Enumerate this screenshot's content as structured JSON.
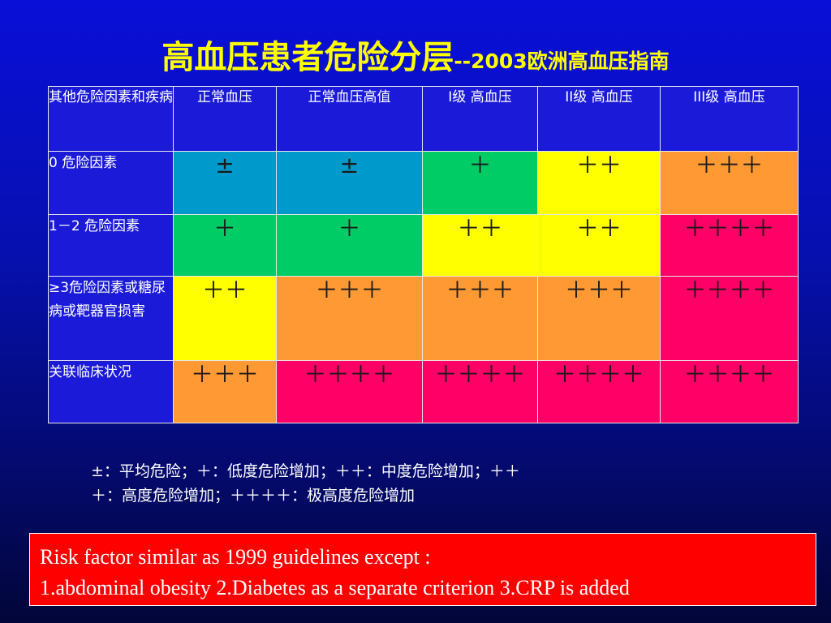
{
  "title": {
    "main": "高血压患者危险分层",
    "sub": "--2003欧洲高血压指南"
  },
  "table": {
    "headers": [
      "其他危险因素和疾病",
      "正常血压",
      "正常血压高值",
      "I级 高血压",
      "II级 高血压",
      "III级 高血压"
    ],
    "rows": [
      {
        "label": "0 危险因素",
        "cells": [
          "±",
          "±",
          "＋",
          "＋＋",
          "＋＋＋"
        ]
      },
      {
        "label": "1－2 危险因素",
        "cells": [
          "＋",
          "＋",
          "＋＋",
          "＋＋",
          "＋＋＋＋"
        ]
      },
      {
        "label": "≥3危险因素或糖尿病或靶器官损害",
        "cells": [
          "＋＋",
          "＋＋＋",
          "＋＋＋",
          "＋＋＋",
          "＋＋＋＋"
        ]
      },
      {
        "label": "关联临床状况",
        "cells": [
          "＋＋＋",
          "＋＋＋＋",
          "＋＋＋＋",
          "＋＋＋＋",
          "＋＋＋＋"
        ]
      }
    ]
  },
  "level_colors": {
    "average": "#0099cc",
    "low": "#00cc66",
    "moderate": "#ffff00",
    "high": "#ff9933",
    "very_high": "#ff0066"
  },
  "legend": {
    "line1": "±：平均危险；＋：低度危险增加；＋＋：中度危险增加；＋＋",
    "line2": "＋：高度危险增加；＋＋＋＋：极高度危险增加"
  },
  "note": {
    "line1": "Risk factor similar as 1999 guidelines except :",
    "line2": "1.abdominal obesity 2.Diabetes as a separate criterion 3.CRP is added"
  }
}
